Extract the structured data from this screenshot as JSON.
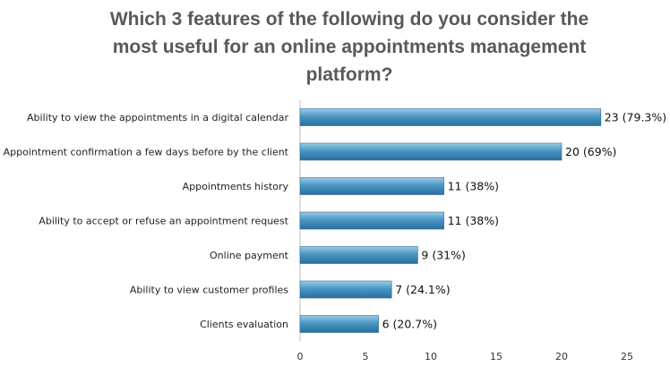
{
  "chart_data": {
    "type": "bar",
    "orientation": "horizontal",
    "title": "Which 3 features of the following do you consider the most useful for an online appointments management platform?",
    "title_lines": [
      "Which 3 features of the following do you consider the",
      "most useful for an online appointments management",
      "platform?"
    ],
    "categories": [
      "Ability to view the appointments in a digital calendar",
      "Appointment confirmation a few days before by the client",
      "Appointments history",
      "Ability to accept or refuse an appointment request",
      "Online payment",
      "Ability to view customer profiles",
      "Clients evaluation"
    ],
    "values": [
      23,
      20,
      11,
      11,
      9,
      7,
      6
    ],
    "data_labels": [
      "23 (79.3%)",
      "20 (69%)",
      "11 (38%)",
      "11 (38%)",
      "9 (31%)",
      "7 (24.1%)",
      "6 (20.7%)"
    ],
    "xlim": [
      0,
      25
    ],
    "x_ticks": [
      0,
      5,
      10,
      15,
      20,
      25
    ],
    "xlabel": "",
    "ylabel": "",
    "grid": false,
    "legend": "none",
    "bar_color": "#3a87b5"
  }
}
